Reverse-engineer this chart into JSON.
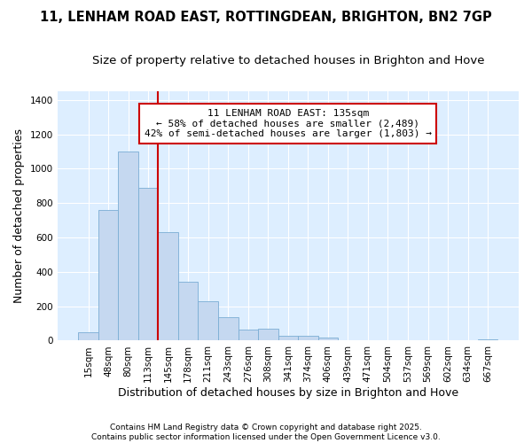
{
  "title_line1": "11, LENHAM ROAD EAST, ROTTINGDEAN, BRIGHTON, BN2 7GP",
  "title_line2": "Size of property relative to detached houses in Brighton and Hove",
  "xlabel": "Distribution of detached houses by size in Brighton and Hove",
  "ylabel": "Number of detached properties",
  "categories": [
    "15sqm",
    "48sqm",
    "80sqm",
    "113sqm",
    "145sqm",
    "178sqm",
    "211sqm",
    "243sqm",
    "276sqm",
    "308sqm",
    "341sqm",
    "374sqm",
    "406sqm",
    "439sqm",
    "471sqm",
    "504sqm",
    "537sqm",
    "569sqm",
    "602sqm",
    "634sqm",
    "667sqm"
  ],
  "values": [
    50,
    760,
    1100,
    890,
    630,
    345,
    230,
    135,
    65,
    70,
    30,
    27,
    18,
    0,
    0,
    0,
    0,
    0,
    0,
    0,
    5
  ],
  "bar_color": "#c5d8f0",
  "bar_edge_color": "#7aadd4",
  "vline_x_index": 4,
  "vline_color": "#cc0000",
  "annotation_text": "11 LENHAM ROAD EAST: 135sqm\n← 58% of detached houses are smaller (2,489)\n42% of semi-detached houses are larger (1,803) →",
  "annotation_box_facecolor": "#ffffff",
  "annotation_box_edgecolor": "#cc0000",
  "ylim": [
    0,
    1450
  ],
  "yticks": [
    0,
    200,
    400,
    600,
    800,
    1000,
    1200,
    1400
  ],
  "plot_bg_color": "#ddeeff",
  "fig_bg_color": "#ffffff",
  "grid_color": "#ffffff",
  "footer": "Contains HM Land Registry data © Crown copyright and database right 2025.\nContains public sector information licensed under the Open Government Licence v3.0.",
  "title_fontsize": 10.5,
  "subtitle_fontsize": 9.5,
  "axis_label_fontsize": 9,
  "tick_fontsize": 7.5,
  "annotation_fontsize": 8,
  "footer_fontsize": 6.5
}
